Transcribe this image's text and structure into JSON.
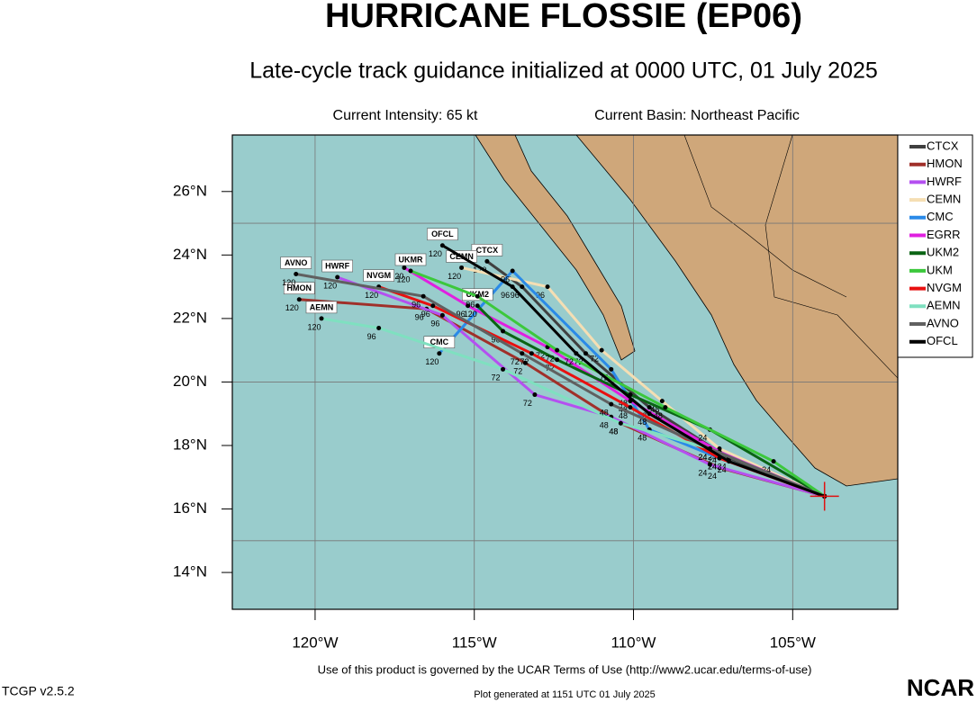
{
  "header": {
    "title": "HURRICANE FLOSSIE (EP06)",
    "subtitle": "Late-cycle track guidance initialized at 0000 UTC, 01 July 2025",
    "intensity": "Current Intensity: 65 kt",
    "basin": "Current Basin: Northeast Pacific"
  },
  "map": {
    "lonlim": [
      -122.6,
      -101.7
    ],
    "latlim": [
      12.84,
      27.78
    ],
    "lonticks": [
      {
        "value": -120,
        "label": "120°W"
      },
      {
        "value": -115,
        "label": "115°W"
      },
      {
        "value": -110,
        "label": "110°W"
      },
      {
        "value": -105,
        "label": "105°W"
      }
    ],
    "latticks": [
      {
        "value": 14,
        "label": "14°N"
      },
      {
        "value": 16,
        "label": "16°N"
      },
      {
        "value": 18,
        "label": "18°N"
      },
      {
        "value": 20,
        "label": "20°N"
      },
      {
        "value": 22,
        "label": "22°N"
      },
      {
        "value": 24,
        "label": "24°N"
      },
      {
        "value": 26,
        "label": "26°N"
      }
    ],
    "lat_grid": [
      15,
      20,
      25
    ],
    "taus": [
      0,
      24,
      48,
      72,
      96,
      120
    ],
    "tracks": [
      {
        "name": "CTCX",
        "color": "#404040",
        "label": true,
        "points": [
          [
            -104.0,
            16.4
          ],
          [
            -107.0,
            17.6
          ],
          [
            -109.5,
            19.2
          ],
          [
            -111.5,
            20.9
          ],
          [
            -113.5,
            23.0
          ],
          [
            -114.6,
            23.8
          ]
        ]
      },
      {
        "name": "HMON",
        "color": "#a0302a",
        "label": true,
        "points": [
          [
            -104.0,
            16.4
          ],
          [
            -107.3,
            17.3
          ],
          [
            -110.4,
            18.7
          ],
          [
            -113.4,
            20.6
          ],
          [
            -116.5,
            22.3
          ],
          [
            -120.5,
            22.6
          ]
        ]
      },
      {
        "name": "HWRF",
        "color": "#b450f0",
        "label": true,
        "points": [
          [
            -104.0,
            16.4
          ],
          [
            -107.6,
            17.4
          ],
          [
            -110.7,
            18.9
          ],
          [
            -113.1,
            19.6
          ],
          [
            -116.0,
            22.1
          ],
          [
            -119.3,
            23.3
          ]
        ]
      },
      {
        "name": "CEMN",
        "color": "#f5deb3",
        "label": true,
        "points": [
          [
            -104.0,
            16.4
          ],
          [
            -107.3,
            17.9
          ],
          [
            -109.1,
            19.4
          ],
          [
            -111.0,
            21.0
          ],
          [
            -112.7,
            23.0
          ],
          [
            -115.4,
            23.6
          ]
        ]
      },
      {
        "name": "CMC",
        "color": "#2a8ae8",
        "label": true,
        "points": [
          [
            -104.0,
            16.4
          ],
          [
            -107.3,
            17.6
          ],
          [
            -109.5,
            18.5
          ],
          [
            -110.7,
            20.4
          ],
          [
            -113.8,
            23.5
          ],
          [
            -116.1,
            20.9
          ]
        ]
      },
      {
        "name": "EGRR",
        "color": "#e020e0",
        "label": false,
        "points": [
          [
            -104.0,
            16.4
          ],
          [
            -107.3,
            17.8
          ],
          [
            -110.1,
            19.4
          ],
          [
            -112.7,
            21.1
          ],
          [
            -115.2,
            22.4
          ],
          [
            -117.2,
            23.6
          ]
        ]
      },
      {
        "name": "UKM2",
        "color": "#0a6414",
        "label": true,
        "points": [
          [
            -104.0,
            16.4
          ],
          [
            -107.6,
            18.5
          ],
          [
            -110.1,
            19.6
          ],
          [
            -112.4,
            20.7
          ],
          [
            -114.1,
            21.6
          ],
          [
            -114.9,
            22.4
          ]
        ]
      },
      {
        "name": "UKM",
        "map_label": "UKMR",
        "color": "#3cc83c",
        "label": true,
        "points": [
          [
            -104.0,
            16.4
          ],
          [
            -105.6,
            17.5
          ],
          [
            -109.0,
            19.2
          ],
          [
            -112.4,
            21.0
          ],
          [
            -114.9,
            22.7
          ],
          [
            -117.0,
            23.5
          ]
        ]
      },
      {
        "name": "NVGM",
        "color": "#e81010",
        "label": true,
        "points": [
          [
            -104.0,
            16.4
          ],
          [
            -107.3,
            17.6
          ],
          [
            -110.1,
            19.2
          ],
          [
            -113.2,
            20.9
          ],
          [
            -116.3,
            22.4
          ],
          [
            -118.0,
            23.0
          ]
        ]
      },
      {
        "name": "AEMN",
        "color": "#7fe0c0",
        "label": true,
        "points": [
          [
            -104.0,
            16.4
          ],
          [
            -107.6,
            17.9
          ],
          [
            -110.4,
            18.7
          ],
          [
            -114.1,
            20.4
          ],
          [
            -118.0,
            21.7
          ],
          [
            -119.8,
            22.0
          ]
        ]
      },
      {
        "name": "AVNO",
        "color": "#606060",
        "label": true,
        "points": [
          [
            -104.0,
            16.4
          ],
          [
            -107.6,
            17.9
          ],
          [
            -110.7,
            19.3
          ],
          [
            -113.5,
            20.9
          ],
          [
            -116.6,
            22.7
          ],
          [
            -120.6,
            23.4
          ]
        ]
      },
      {
        "name": "OFCL",
        "color": "#000000",
        "label": true,
        "points": [
          [
            -104.0,
            16.4
          ],
          [
            -107.0,
            17.5
          ],
          [
            -109.5,
            19.0
          ],
          [
            -111.8,
            20.9
          ],
          [
            -113.8,
            23.0
          ],
          [
            -116.0,
            24.3
          ]
        ]
      }
    ]
  },
  "footer": {
    "terms": "Use of this product is governed by the UCAR Terms of Use (http://www2.ucar.edu/terms-of-use)",
    "version": "TCGP v2.5.2",
    "generated": "Plot generated at 1151 UTC   01 July 2025",
    "logo": "NCAR"
  }
}
